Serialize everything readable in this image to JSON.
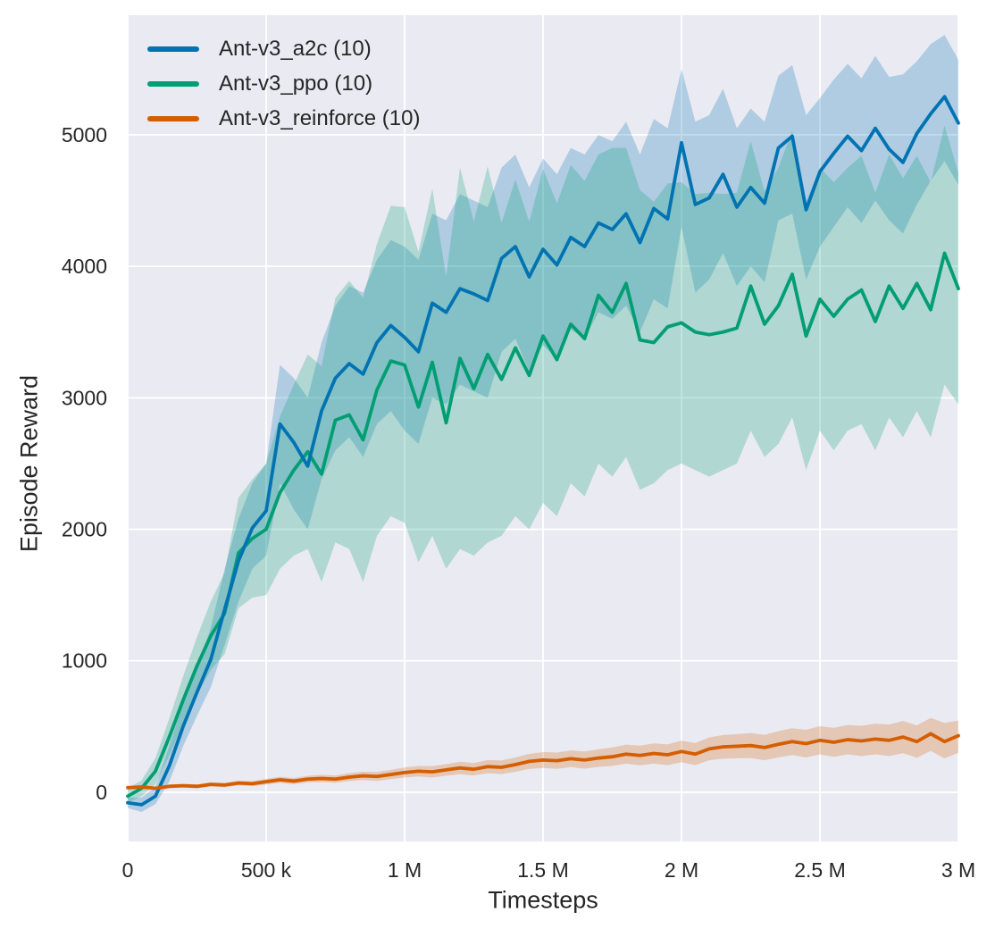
{
  "chart_data": {
    "type": "line",
    "title": "",
    "xlabel": "Timesteps",
    "ylabel": "Episode Reward",
    "xlim": [
      0,
      3000000
    ],
    "ylim": [
      -374,
      5910
    ],
    "grid": true,
    "legend_position": "upper left",
    "colors": {
      "plot_bg": "#eaeaf2",
      "grid": "#ffffff",
      "text": "#262626"
    },
    "band_alpha": 0.25,
    "x_ticks": {
      "values": [
        0,
        500000,
        1000000,
        1500000,
        2000000,
        2500000,
        3000000
      ],
      "labels": [
        "0",
        "500 k",
        "1 M",
        "1.5 M",
        "2 M",
        "2.5 M",
        "3 M"
      ]
    },
    "y_ticks": {
      "values": [
        0,
        1000,
        2000,
        3000,
        4000,
        5000
      ],
      "labels": [
        "0",
        "1000",
        "2000",
        "3000",
        "4000",
        "5000"
      ]
    },
    "x": [
      0,
      50000,
      100000,
      150000,
      200000,
      250000,
      300000,
      350000,
      400000,
      450000,
      500000,
      550000,
      600000,
      650000,
      700000,
      750000,
      800000,
      850000,
      900000,
      950000,
      1000000,
      1050000,
      1100000,
      1150000,
      1200000,
      1250000,
      1300000,
      1350000,
      1400000,
      1450000,
      1500000,
      1550000,
      1600000,
      1650000,
      1700000,
      1750000,
      1800000,
      1850000,
      1900000,
      1950000,
      2000000,
      2050000,
      2100000,
      2150000,
      2200000,
      2250000,
      2300000,
      2350000,
      2400000,
      2450000,
      2500000,
      2550000,
      2600000,
      2650000,
      2700000,
      2750000,
      2800000,
      2850000,
      2900000,
      2950000,
      3000000
    ],
    "series": [
      {
        "id": "a2c",
        "label": "Ant-v3_a2c (10)",
        "color": "#0173b2",
        "mean": [
          -80,
          -95,
          -30,
          200,
          500,
          760,
          1010,
          1390,
          1760,
          2010,
          2140,
          2800,
          2660,
          2480,
          2900,
          3150,
          3260,
          3180,
          3420,
          3550,
          3460,
          3350,
          3720,
          3650,
          3830,
          3790,
          3740,
          4060,
          4150,
          3920,
          4130,
          4010,
          4220,
          4150,
          4330,
          4280,
          4400,
          4180,
          4440,
          4360,
          4940,
          4470,
          4520,
          4700,
          4450,
          4600,
          4480,
          4900,
          4990,
          4430,
          4720,
          4860,
          4990,
          4880,
          5050,
          4890,
          4790,
          5010,
          5160,
          5290,
          5090
        ],
        "low": [
          -120,
          -150,
          -90,
          80,
          350,
          580,
          800,
          1120,
          1450,
          1700,
          1800,
          2350,
          2150,
          2000,
          2380,
          2600,
          2700,
          2550,
          2800,
          2900,
          2750,
          2650,
          3000,
          2950,
          3100,
          3050,
          3000,
          3350,
          3450,
          3200,
          3400,
          3300,
          3520,
          3450,
          3650,
          3600,
          3700,
          3500,
          3750,
          3680,
          4300,
          3800,
          3900,
          4100,
          3850,
          4000,
          3880,
          4350,
          4400,
          3900,
          4150,
          4300,
          4450,
          4330,
          4500,
          4350,
          4250,
          4470,
          4650,
          4800,
          4620
        ],
        "high": [
          -40,
          -40,
          40,
          350,
          680,
          950,
          1250,
          1700,
          2080,
          2350,
          2500,
          3250,
          3150,
          3000,
          3420,
          3700,
          3850,
          3800,
          4050,
          4200,
          4150,
          4050,
          4400,
          4350,
          4550,
          4500,
          4450,
          4750,
          4850,
          4600,
          4820,
          4700,
          4900,
          4850,
          5000,
          4950,
          5100,
          4850,
          5120,
          5050,
          5500,
          5100,
          5150,
          5350,
          5050,
          5200,
          5100,
          5450,
          5530,
          5150,
          5280,
          5420,
          5540,
          5430,
          5600,
          5440,
          5460,
          5560,
          5690,
          5760,
          5570
        ]
      },
      {
        "id": "ppo",
        "label": "Ant-v3_ppo (10)",
        "color": "#029e73",
        "mean": [
          -30,
          30,
          160,
          420,
          700,
          960,
          1190,
          1360,
          1820,
          1930,
          2000,
          2280,
          2450,
          2590,
          2420,
          2830,
          2870,
          2680,
          3060,
          3280,
          3250,
          2930,
          3270,
          2810,
          3300,
          3070,
          3330,
          3140,
          3380,
          3170,
          3470,
          3290,
          3560,
          3450,
          3780,
          3650,
          3870,
          3440,
          3420,
          3540,
          3570,
          3500,
          3480,
          3500,
          3530,
          3850,
          3560,
          3700,
          3940,
          3470,
          3750,
          3620,
          3750,
          3820,
          3580,
          3850,
          3680,
          3870,
          3670,
          4100,
          3830
        ],
        "low": [
          -80,
          -30,
          60,
          280,
          520,
          740,
          930,
          1050,
          1400,
          1480,
          1500,
          1700,
          1800,
          1850,
          1600,
          1900,
          1850,
          1600,
          1950,
          2100,
          2050,
          1750,
          1950,
          1700,
          1850,
          1800,
          1900,
          1950,
          2100,
          2000,
          2200,
          2100,
          2350,
          2250,
          2500,
          2400,
          2550,
          2300,
          2350,
          2450,
          2500,
          2450,
          2400,
          2450,
          2500,
          2750,
          2550,
          2650,
          2850,
          2450,
          2750,
          2600,
          2750,
          2800,
          2600,
          2850,
          2700,
          2900,
          2700,
          3100,
          2950
        ],
        "high": [
          30,
          90,
          260,
          560,
          880,
          1180,
          1450,
          1670,
          2240,
          2380,
          2500,
          2860,
          3100,
          3330,
          3240,
          3760,
          3890,
          3760,
          4170,
          4460,
          4450,
          4110,
          4590,
          3920,
          4750,
          4340,
          4760,
          4330,
          4660,
          4340,
          4740,
          4480,
          4770,
          4650,
          4850,
          4900,
          4900,
          4580,
          4490,
          4630,
          4640,
          4550,
          4560,
          4550,
          4560,
          4950,
          4570,
          4750,
          5030,
          4490,
          4750,
          4640,
          4750,
          4840,
          4560,
          4850,
          4670,
          4840,
          4640,
          5070,
          4710
        ]
      },
      {
        "id": "reinforce",
        "label": "Ant-v3_reinforce (10)",
        "color": "#d55e00",
        "mean": [
          35,
          40,
          30,
          45,
          50,
          45,
          60,
          55,
          70,
          65,
          80,
          95,
          85,
          100,
          105,
          100,
          115,
          125,
          120,
          135,
          150,
          160,
          155,
          170,
          185,
          175,
          195,
          190,
          210,
          235,
          245,
          240,
          255,
          245,
          260,
          270,
          290,
          280,
          295,
          285,
          310,
          290,
          330,
          345,
          350,
          355,
          340,
          365,
          385,
          370,
          395,
          380,
          400,
          390,
          405,
          395,
          420,
          385,
          445,
          385,
          430
        ],
        "low": [
          25,
          28,
          18,
          32,
          36,
          30,
          44,
          38,
          52,
          46,
          58,
          72,
          62,
          75,
          78,
          72,
          85,
          93,
          86,
          100,
          112,
          120,
          112,
          126,
          138,
          128,
          145,
          138,
          155,
          178,
          185,
          178,
          192,
          180,
          193,
          200,
          218,
          205,
          218,
          206,
          228,
          206,
          243,
          255,
          258,
          260,
          243,
          265,
          283,
          265,
          288,
          270,
          288,
          275,
          288,
          275,
          298,
          262,
          315,
          258,
          300
        ],
        "high": [
          45,
          52,
          42,
          58,
          64,
          60,
          76,
          72,
          88,
          84,
          102,
          118,
          108,
          125,
          132,
          128,
          145,
          157,
          154,
          170,
          188,
          200,
          198,
          214,
          232,
          222,
          245,
          242,
          265,
          292,
          305,
          302,
          318,
          310,
          327,
          340,
          362,
          355,
          372,
          364,
          392,
          374,
          417,
          435,
          442,
          450,
          437,
          465,
          487,
          475,
          502,
          490,
          512,
          505,
          522,
          515,
          542,
          508,
          565,
          528,
          545
        ]
      }
    ]
  }
}
